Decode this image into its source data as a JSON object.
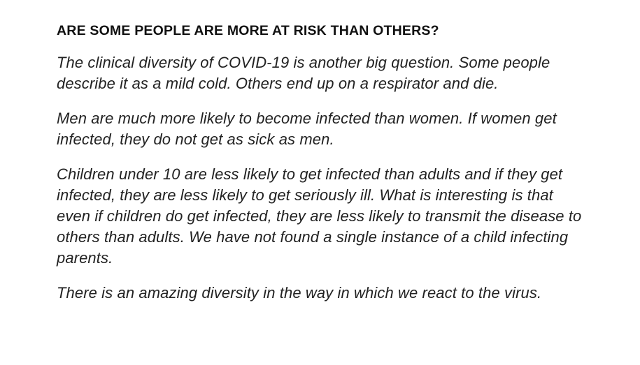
{
  "article": {
    "heading": "ARE SOME PEOPLE ARE MORE AT RISK THAN OTHERS?",
    "paragraphs": [
      "The clinical diversity of COVID-19 is another big question. Some people describe it as a mild cold. Others end up on a respirator and die.",
      "Men are much more likely to become infected than women. If women get infected, they do not get as sick as men.",
      "Children under 10 are less likely to get infected than adults and if they get infected, they are less likely to get seriously ill. What is interesting is that even if children do get infected, they are less likely to transmit the disease to others than adults. We have not found a single instance of a child infecting parents.",
      "There is an amazing diversity in the way in which we react to the virus."
    ]
  }
}
